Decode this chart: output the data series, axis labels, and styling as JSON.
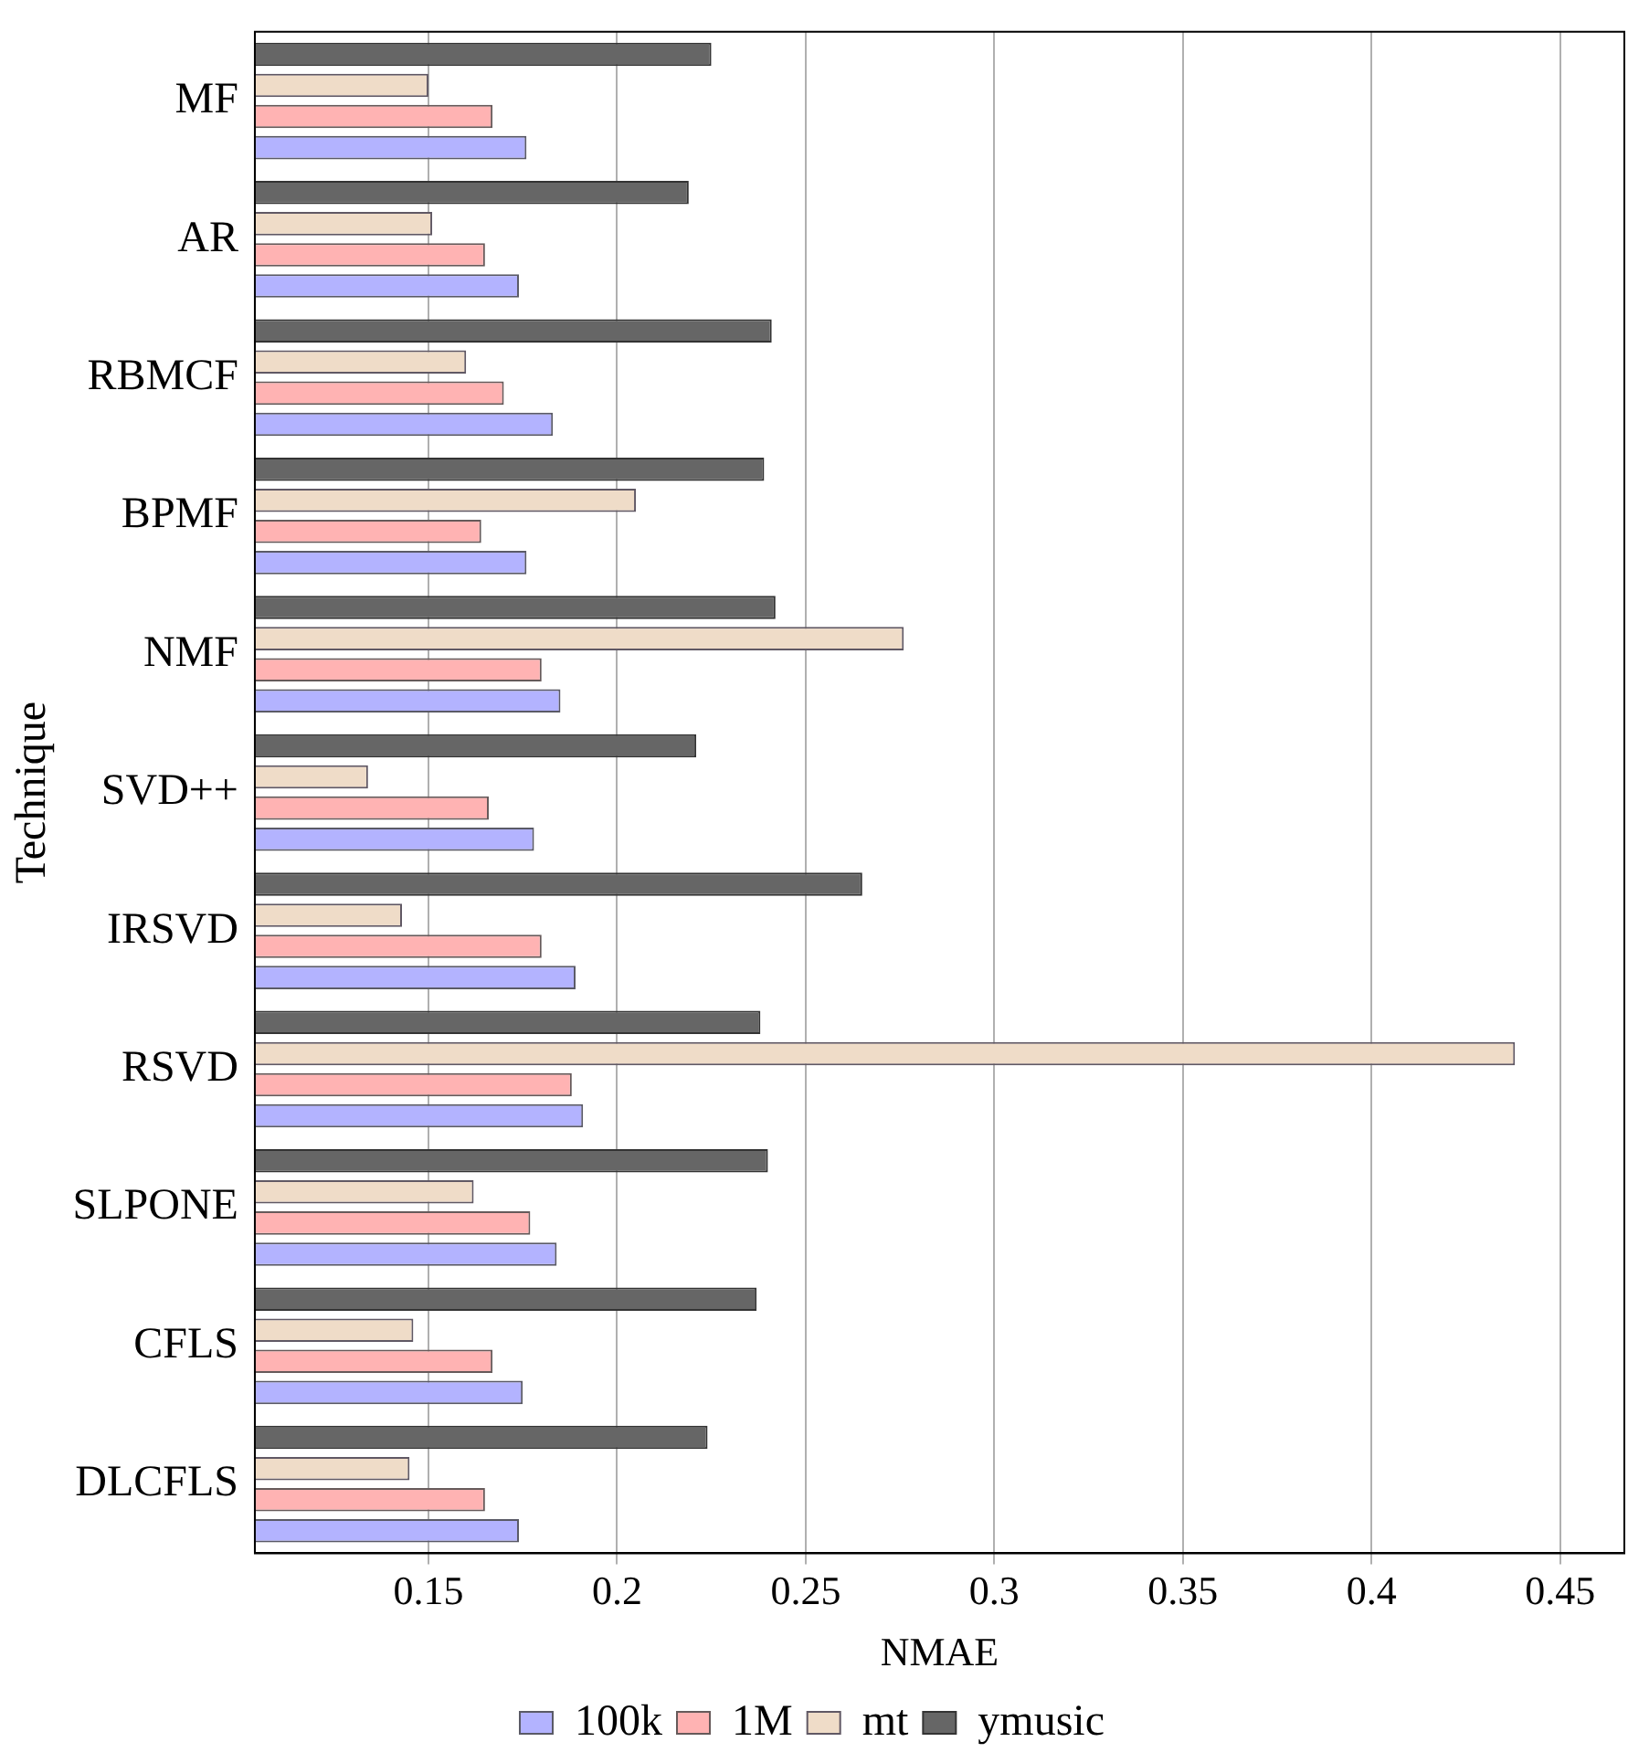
{
  "chart_data": {
    "type": "bar",
    "orientation": "horizontal",
    "xlabel": "NMAE",
    "ylabel": "Technique",
    "categories": [
      "MF",
      "AR",
      "RBMCF",
      "BPMF",
      "NMF",
      "SVD++",
      "IRSVD",
      "RSVD",
      "SLPONE",
      "CFLS",
      "DLCFLS"
    ],
    "series": [
      {
        "name": "100k",
        "color": "#b3b3ff",
        "values": [
          0.176,
          0.174,
          0.183,
          0.176,
          0.185,
          0.178,
          0.189,
          0.191,
          0.184,
          0.175,
          0.174
        ]
      },
      {
        "name": "1M",
        "color": "#ffb3b3",
        "values": [
          0.167,
          0.165,
          0.17,
          0.164,
          0.18,
          0.166,
          0.18,
          0.188,
          0.177,
          0.167,
          0.165
        ]
      },
      {
        "name": "mt",
        "color": "#efdcc8",
        "values": [
          0.15,
          0.151,
          0.16,
          0.205,
          0.276,
          0.134,
          0.143,
          0.438,
          0.162,
          0.146,
          0.145
        ]
      },
      {
        "name": "ymusic",
        "color": "#666666",
        "values": [
          0.225,
          0.219,
          0.241,
          0.239,
          0.242,
          0.221,
          0.265,
          0.238,
          0.24,
          0.237,
          0.224
        ]
      }
    ],
    "xlim": [
      0.104,
      0.467
    ],
    "xticks": [
      0.15,
      0.2,
      0.25,
      0.3,
      0.35,
      0.4,
      0.45
    ],
    "grid": "x",
    "legend": "bottom"
  }
}
